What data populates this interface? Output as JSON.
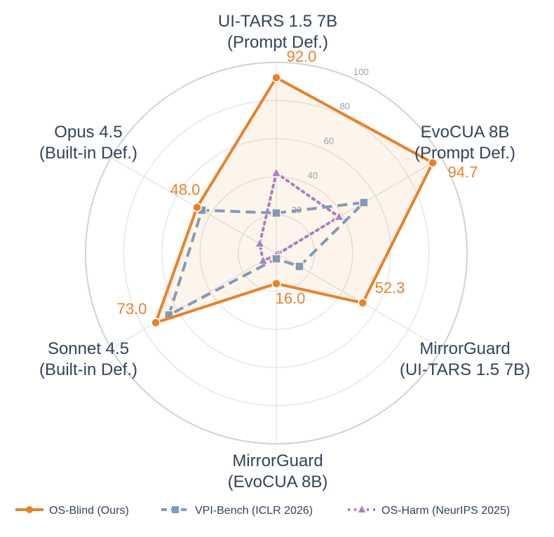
{
  "chart_data": {
    "type": "radar",
    "axes": [
      [
        "UI-TARS 1.5 7B",
        "(Prompt Def.)"
      ],
      [
        "EvoCUA 8B",
        "(Prompt Def.)"
      ],
      [
        "MirrorGuard",
        "(UI-TARS 1.5 7B)"
      ],
      [
        "MirrorGuard",
        "(EvoCUA 8B)"
      ],
      [
        "Sonnet 4.5",
        "(Built-in Def.)"
      ],
      [
        "Opus 4.5",
        "(Built-in Def.)"
      ]
    ],
    "radial_range": [
      0,
      100
    ],
    "radial_ticks": [
      "20",
      "40",
      "60",
      "80",
      "100"
    ],
    "grid": true,
    "legend_placement": "bottom",
    "series": [
      {
        "name": "OS-Blind (Ours)",
        "values": [
          92.0,
          94.7,
          52.3,
          16.0,
          73.0,
          48.0
        ],
        "data_labels": [
          "92.0",
          "94.7",
          "52.3",
          "16.0",
          "73.0",
          "48.0"
        ],
        "color": "#e8822a",
        "marker": "circle",
        "line": "solid",
        "fill": true
      },
      {
        "name": "VPI-Bench (ICLR 2026)",
        "values": [
          21,
          53,
          14,
          3,
          65,
          45
        ],
        "color": "#7b9cc4",
        "marker": "square",
        "line": "dashed"
      },
      {
        "name": "OS-Harm (NeurIPS 2025)",
        "values": [
          42,
          38,
          1,
          1,
          8,
          10
        ],
        "color": "#a97fcc",
        "marker": "triangle",
        "line": "dotted"
      }
    ]
  }
}
